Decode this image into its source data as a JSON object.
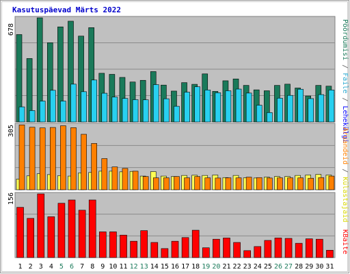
{
  "chart_data": {
    "type": "bar",
    "title": "Kasutuspäevad Märts 2022",
    "categories": [
      "1",
      "2",
      "3",
      "4",
      "5",
      "6",
      "7",
      "8",
      "9",
      "10",
      "11",
      "12",
      "13",
      "14",
      "15",
      "16",
      "17",
      "18",
      "19",
      "20",
      "21",
      "22",
      "23",
      "24",
      "25",
      "26",
      "27",
      "28",
      "29",
      "30",
      "31"
    ],
    "weekend_categories": [
      "5",
      "6",
      "12",
      "13",
      "19",
      "20",
      "26",
      "27"
    ],
    "panels": [
      {
        "id": "top",
        "ymax_label": "678",
        "ylim": [
          0,
          678
        ],
        "legend": [
          "Pöördumisi",
          "Faile",
          "Lehekülgi"
        ],
        "series": [
          {
            "name": "Pöördumisi",
            "color": "#1a7a5a",
            "values": [
              569,
              413,
              678,
              516,
              619,
              656,
              559,
              614,
              317,
              310,
              290,
              260,
              271,
              328,
              240,
              201,
              256,
              245,
              313,
              199,
              268,
              280,
              238,
              209,
              203,
              238,
              246,
              221,
              169,
              238,
              233
            ]
          },
          {
            "name": "Faile",
            "color": "#28d0f0",
            "values": [
              98,
              74,
              136,
              206,
              136,
              246,
              197,
              273,
              187,
              162,
              153,
              145,
              144,
              243,
              151,
              102,
              194,
              229,
              208,
              190,
              203,
              214,
              188,
              109,
              61,
              155,
              173,
              213,
              152,
              178,
              208
            ]
          },
          {
            "name": "Lehekülgi",
            "color": "#0000ff",
            "values": []
          }
        ]
      },
      {
        "id": "middle",
        "ymax_label": "305",
        "ylim": [
          0,
          305
        ],
        "legend": [
          "Aruandeid",
          "Külastajaid"
        ],
        "series": [
          {
            "name": "Külastajaid",
            "color": "#ffff55",
            "values": [
              50,
              65,
              75,
              71,
              66,
              64,
              79,
              81,
              87,
              87,
              84,
              86,
              64,
              85,
              64,
              62,
              67,
              68,
              67,
              69,
              57,
              67,
              56,
              55,
              59,
              62,
              62,
              67,
              69,
              72,
              69
            ]
          },
          {
            "name": "Aruandeid",
            "color": "#ff8000",
            "values": [
              304,
              293,
              290,
              292,
              300,
              291,
              260,
              217,
              146,
              107,
              100,
              87,
              62,
              56,
              56,
              62,
              56,
              62,
              56,
              55,
              56,
              56,
              59,
              57,
              55,
              56,
              56,
              56,
              54,
              57,
              64
            ]
          }
        ]
      },
      {
        "id": "bottom",
        "ymax_label": "156",
        "ylim": [
          0,
          156
        ],
        "legend": [
          "KBaite"
        ],
        "series": [
          {
            "name": "KBaite",
            "color": "#ff0000",
            "values": [
              123,
              96,
              156,
              100,
              133,
              141,
              116,
              141,
              63,
              63,
              55,
              40,
              66,
              37,
              22,
              40,
              49,
              67,
              24,
              45,
              48,
              37,
              17,
              27,
              42,
              48,
              47,
              35,
              46,
              45,
              18
            ]
          }
        ]
      }
    ]
  }
}
